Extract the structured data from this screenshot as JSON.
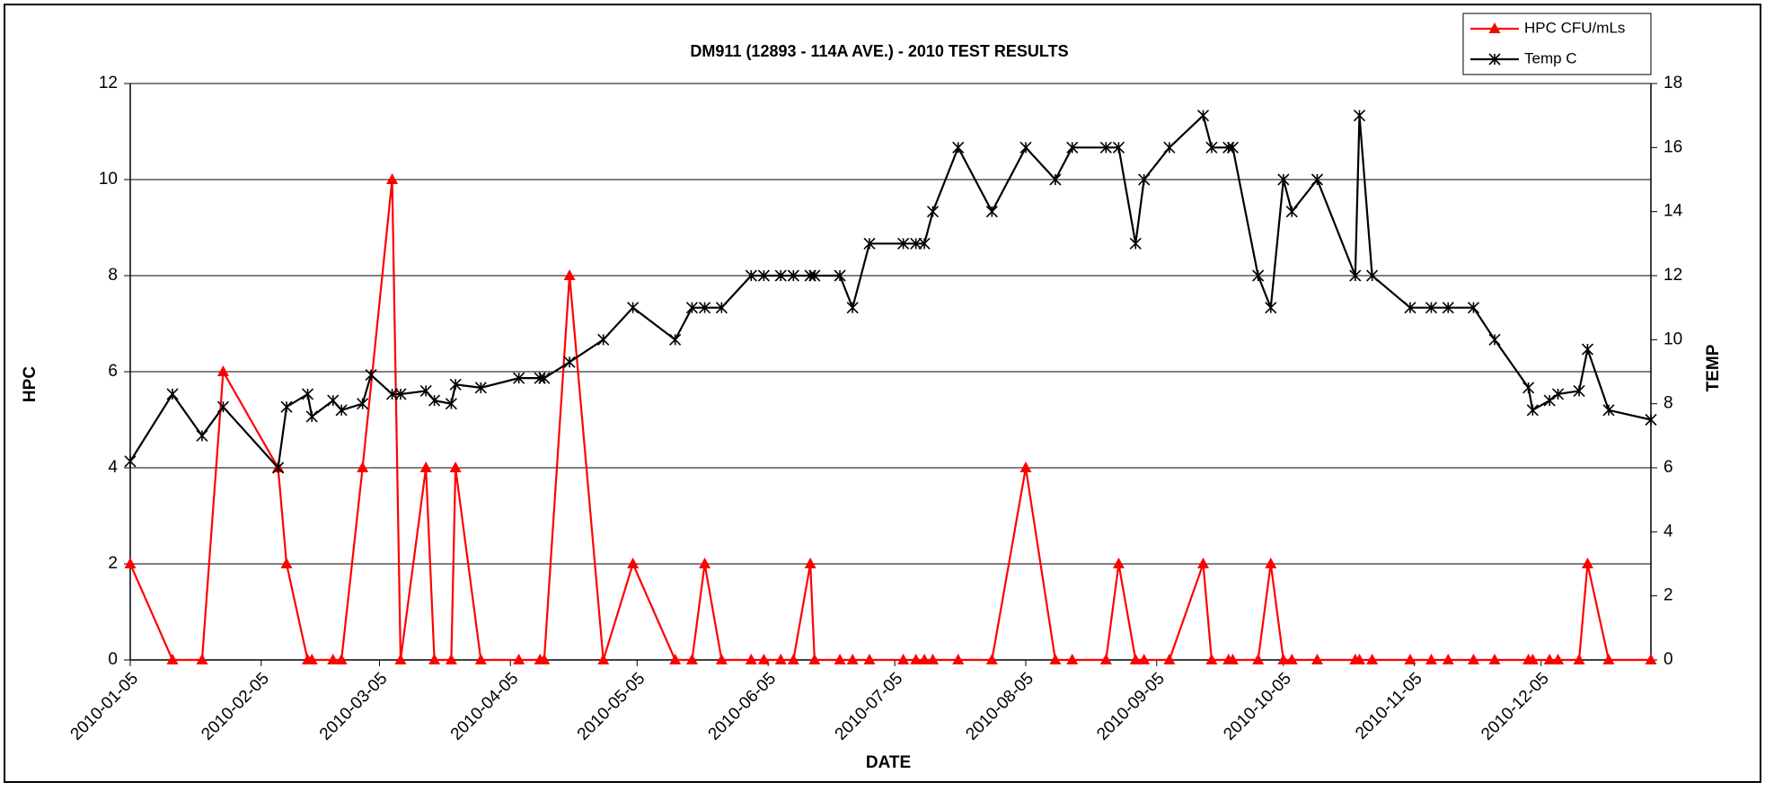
{
  "chart_data": {
    "type": "line",
    "title": "DM911 (12893 - 114A AVE.) - 2010 TEST RESULTS",
    "x_label": "DATE",
    "y_label": "HPC",
    "y2_label": "TEMP",
    "xlim": [
      "2010-01-05",
      "2010-12-31"
    ],
    "xticks": [
      "2010-01-05",
      "2010-02-05",
      "2010-03-05",
      "2010-04-05",
      "2010-05-05",
      "2010-06-05",
      "2010-07-05",
      "2010-08-05",
      "2010-09-05",
      "2010-10-05",
      "2010-11-05",
      "2010-12-05"
    ],
    "ylim": [
      0,
      12
    ],
    "yticks": [
      0,
      2,
      4,
      6,
      8,
      10,
      12
    ],
    "y2lim": [
      0,
      18
    ],
    "y2ticks": [
      0,
      2,
      4,
      6,
      8,
      10,
      12,
      14,
      16,
      18
    ],
    "grid": true,
    "legend": "top-right",
    "series": [
      {
        "name": "HPC CFU/mLs",
        "color": "#ff0000",
        "marker": "triangle",
        "x": [
          "2010-01-05",
          "2010-01-15",
          "2010-01-22",
          "2010-01-27",
          "2010-02-09",
          "2010-02-11",
          "2010-02-16",
          "2010-02-17",
          "2010-02-22",
          "2010-02-24",
          "2010-03-01",
          "2010-03-08",
          "2010-03-10",
          "2010-03-16",
          "2010-03-18",
          "2010-03-22",
          "2010-03-23",
          "2010-03-29",
          "2010-04-07",
          "2010-04-12",
          "2010-04-13",
          "2010-04-19",
          "2010-04-27",
          "2010-05-04",
          "2010-05-14",
          "2010-05-18",
          "2010-05-21",
          "2010-05-25",
          "2010-06-01",
          "2010-06-04",
          "2010-06-08",
          "2010-06-11",
          "2010-06-15",
          "2010-06-16",
          "2010-06-22",
          "2010-06-25",
          "2010-06-29",
          "2010-07-07",
          "2010-07-10",
          "2010-07-12",
          "2010-07-14",
          "2010-07-20",
          "2010-07-28",
          "2010-08-05",
          "2010-08-12",
          "2010-08-16",
          "2010-08-24",
          "2010-08-27",
          "2010-08-31",
          "2010-09-02",
          "2010-09-08",
          "2010-09-16",
          "2010-09-18",
          "2010-09-22",
          "2010-09-23",
          "2010-09-29",
          "2010-10-02",
          "2010-10-05",
          "2010-10-07",
          "2010-10-13",
          "2010-10-22",
          "2010-10-23",
          "2010-10-26",
          "2010-11-04",
          "2010-11-09",
          "2010-11-13",
          "2010-11-19",
          "2010-11-24",
          "2010-12-02",
          "2010-12-03",
          "2010-12-07",
          "2010-12-09",
          "2010-12-14",
          "2010-12-16",
          "2010-12-21",
          "2010-12-31"
        ],
        "values": [
          2,
          0,
          0,
          6,
          4,
          2,
          0,
          0,
          0,
          0,
          4,
          10,
          0,
          4,
          0,
          0,
          4,
          0,
          0,
          0,
          0,
          8,
          0,
          2,
          0,
          0,
          2,
          0,
          0,
          0,
          0,
          0,
          2,
          0,
          0,
          0,
          0,
          0,
          0,
          0,
          0,
          0,
          0,
          4,
          0,
          0,
          0,
          2,
          0,
          0,
          0,
          2,
          0,
          0,
          0,
          0,
          2,
          0,
          0,
          0,
          0,
          0,
          0,
          0,
          0,
          0,
          0,
          0,
          0,
          0,
          0,
          0,
          0,
          2,
          0,
          0
        ]
      },
      {
        "name": "Temp C",
        "color": "#000000",
        "marker": "star",
        "axis": "y2",
        "x": [
          "2010-01-05",
          "2010-01-15",
          "2010-01-22",
          "2010-01-27",
          "2010-02-09",
          "2010-02-11",
          "2010-02-16",
          "2010-02-17",
          "2010-02-22",
          "2010-02-24",
          "2010-03-01",
          "2010-03-03",
          "2010-03-08",
          "2010-03-10",
          "2010-03-16",
          "2010-03-18",
          "2010-03-22",
          "2010-03-23",
          "2010-03-29",
          "2010-04-07",
          "2010-04-12",
          "2010-04-13",
          "2010-04-19",
          "2010-04-27",
          "2010-05-04",
          "2010-05-14",
          "2010-05-18",
          "2010-05-21",
          "2010-05-25",
          "2010-06-01",
          "2010-06-04",
          "2010-06-08",
          "2010-06-11",
          "2010-06-15",
          "2010-06-16",
          "2010-06-22",
          "2010-06-25",
          "2010-06-29",
          "2010-07-07",
          "2010-07-10",
          "2010-07-12",
          "2010-07-14",
          "2010-07-20",
          "2010-07-28",
          "2010-08-05",
          "2010-08-12",
          "2010-08-16",
          "2010-08-24",
          "2010-08-27",
          "2010-08-31",
          "2010-09-02",
          "2010-09-08",
          "2010-09-16",
          "2010-09-18",
          "2010-09-22",
          "2010-09-23",
          "2010-09-29",
          "2010-10-02",
          "2010-10-05",
          "2010-10-07",
          "2010-10-13",
          "2010-10-22",
          "2010-10-23",
          "2010-10-26",
          "2010-11-04",
          "2010-11-09",
          "2010-11-13",
          "2010-11-19",
          "2010-11-24",
          "2010-12-02",
          "2010-12-03",
          "2010-12-07",
          "2010-12-09",
          "2010-12-14",
          "2010-12-16",
          "2010-12-21",
          "2010-12-31"
        ],
        "values": [
          6.2,
          8.3,
          7,
          7.9,
          6,
          7.9,
          8.3,
          7.6,
          8.1,
          7.8,
          8,
          8.9,
          8.3,
          8.3,
          8.4,
          8.1,
          8,
          8.6,
          8.5,
          8.8,
          8.8,
          8.8,
          9.3,
          10,
          11,
          10,
          11,
          11,
          11,
          12,
          12,
          12,
          12,
          12,
          12,
          12,
          11,
          13,
          13,
          13,
          13,
          14,
          16,
          14,
          16,
          15,
          16,
          16,
          16,
          13,
          15,
          16,
          17,
          16,
          16,
          16,
          12,
          11,
          15,
          14,
          15,
          12,
          17,
          12,
          11,
          11,
          11,
          11,
          10,
          8.5,
          7.8,
          8.1,
          8.3,
          8.4,
          9.7,
          7.8,
          7.5
        ]
      }
    ]
  }
}
